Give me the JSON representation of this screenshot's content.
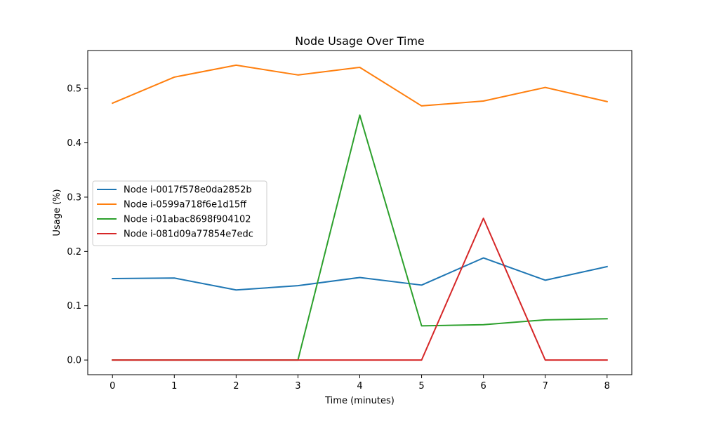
{
  "chart_data": {
    "type": "line",
    "title": "Node Usage Over Time",
    "xlabel": "Time (minutes)",
    "ylabel": "Usage (%)",
    "x": [
      0,
      1,
      2,
      3,
      4,
      5,
      6,
      7,
      8
    ],
    "xlim": [
      -0.4,
      8.4
    ],
    "ylim": [
      -0.027,
      0.57
    ],
    "xticks": [
      0,
      1,
      2,
      3,
      4,
      5,
      6,
      7,
      8
    ],
    "yticks": [
      0.0,
      0.1,
      0.2,
      0.3,
      0.4,
      0.5
    ],
    "ytick_labels": [
      "0.0",
      "0.1",
      "0.2",
      "0.3",
      "0.4",
      "0.5"
    ],
    "grid": false,
    "legend_position": "center-left",
    "series": [
      {
        "name": "Node i-0017f578e0da2852b",
        "color": "#1f77b4",
        "values": [
          0.15,
          0.151,
          0.129,
          0.137,
          0.152,
          0.138,
          0.188,
          0.147,
          0.172
        ]
      },
      {
        "name": "Node i-0599a718f6e1d15ff",
        "color": "#ff7f0e",
        "values": [
          0.473,
          0.521,
          0.543,
          0.525,
          0.539,
          0.468,
          0.477,
          0.502,
          0.476
        ]
      },
      {
        "name": "Node i-01abac8698f904102",
        "color": "#2ca02c",
        "values": [
          0.0,
          0.0,
          0.0,
          0.0,
          0.451,
          0.063,
          0.065,
          0.074,
          0.076
        ]
      },
      {
        "name": "Node i-081d09a77854e7edc",
        "color": "#d62728",
        "values": [
          0.0,
          0.0,
          0.0,
          0.0,
          0.0,
          0.0,
          0.261,
          0.0,
          0.0
        ]
      }
    ]
  }
}
